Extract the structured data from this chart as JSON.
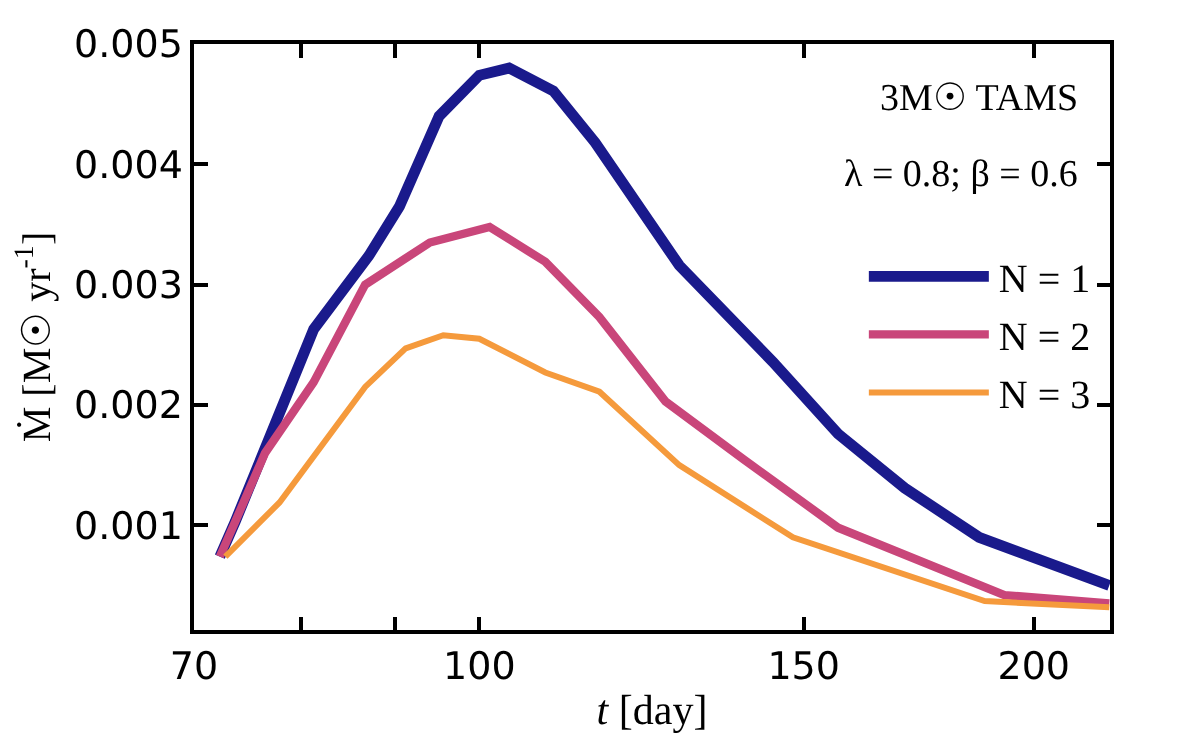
{
  "chart_data": {
    "type": "line",
    "xlabel": "t [day]",
    "ylabel": "Ṁ [M☉ yr$^{-1}$]",
    "annotations": [
      "3M☉ TAMS",
      "λ = 0.8; β = 0.6"
    ],
    "log": "x",
    "xlim": [
      70,
      220
    ],
    "xticks": [
      70,
      {
        "value": 80,
        "label": null
      },
      {
        "value": 90,
        "label": null
      },
      100,
      150,
      200
    ],
    "ylim": [
      0.00013,
      0.005
    ],
    "yticks": [
      0.001,
      0.002,
      0.003,
      0.004,
      0.005
    ],
    "legend": "right",
    "marker": "none",
    "line_style": "solid",
    "series": [
      {
        "name": "N = 1",
        "color": "#1a1a8c",
        "x": [
          72.3,
          73.7,
          81.3,
          87.1,
          90.5,
          95.1,
          100,
          103.8,
          109.7,
          115.6,
          128.4,
          144.3,
          156.6,
          170.2,
          186.8,
          219.8
        ],
        "values": [
          0.00074,
          0.00103,
          0.00263,
          0.00324,
          0.00365,
          0.0044,
          0.00474,
          0.0048,
          0.00461,
          0.00418,
          0.00316,
          0.00236,
          0.00176,
          0.00131,
          0.0009,
          0.0005
        ]
      },
      {
        "name": "N = 2",
        "color": "#c9467a",
        "x": [
          72.3,
          73.7,
          76.5,
          81.3,
          86.7,
          94.0,
          101.3,
          108.6,
          116.2,
          126.2,
          139.1,
          156.6,
          192.8,
          219.8
        ],
        "values": [
          0.00074,
          0.00103,
          0.0016,
          0.00219,
          0.003,
          0.00335,
          0.00348,
          0.00319,
          0.00273,
          0.00203,
          0.00155,
          0.00098,
          0.00042,
          0.00035
        ]
      },
      {
        "name": "N = 3",
        "color": "#f59a3c",
        "x": [
          72.8,
          77.9,
          86.7,
          91.2,
          95.6,
          100,
          108.6,
          116.2,
          128.4,
          148.0,
          188.1,
          219.8
        ],
        "values": [
          0.00074,
          0.00119,
          0.00215,
          0.00247,
          0.00258,
          0.00255,
          0.00227,
          0.00211,
          0.0015,
          0.0009,
          0.00037,
          0.00032
        ]
      }
    ]
  }
}
